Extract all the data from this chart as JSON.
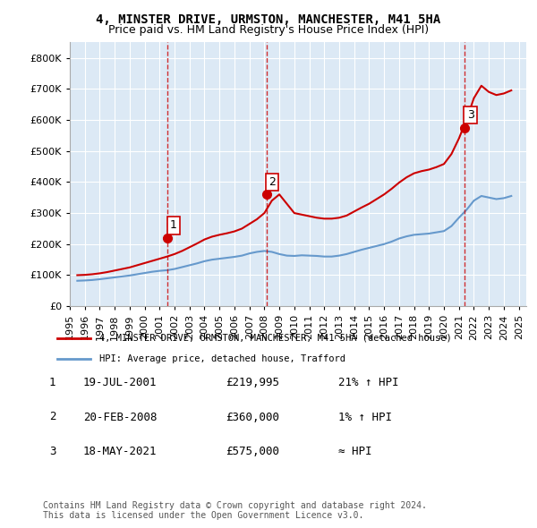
{
  "title_line1": "4, MINSTER DRIVE, URMSTON, MANCHESTER, M41 5HA",
  "title_line2": "Price paid vs. HM Land Registry's House Price Index (HPI)",
  "ylabel": "",
  "background_color": "#ffffff",
  "plot_bg_color": "#dce9f5",
  "grid_color": "#ffffff",
  "sale_color": "#cc0000",
  "hpi_color": "#6699cc",
  "vline_color": "#cc0000",
  "marker_color": "#cc0000",
  "ylim": [
    0,
    850000
  ],
  "yticks": [
    0,
    100000,
    200000,
    300000,
    400000,
    500000,
    600000,
    700000,
    800000
  ],
  "ytick_labels": [
    "£0",
    "£100K",
    "£200K",
    "£300K",
    "£400K",
    "£500K",
    "£600K",
    "£700K",
    "£800K"
  ],
  "sales": [
    {
      "year": 2001.54,
      "price": 219995,
      "label": "1"
    },
    {
      "year": 2008.13,
      "price": 360000,
      "label": "2"
    },
    {
      "year": 2021.38,
      "price": 575000,
      "label": "3"
    }
  ],
  "legend_sale_label": "4, MINSTER DRIVE, URMSTON, MANCHESTER, M41 5HA (detached house)",
  "legend_hpi_label": "HPI: Average price, detached house, Trafford",
  "table_entries": [
    {
      "num": "1",
      "date": "19-JUL-2001",
      "price": "£219,995",
      "change": "21% ↑ HPI"
    },
    {
      "num": "2",
      "date": "20-FEB-2008",
      "price": "£360,000",
      "change": "1% ↑ HPI"
    },
    {
      "num": "3",
      "date": "18-MAY-2021",
      "price": "£575,000",
      "change": "≈ HPI"
    }
  ],
  "footnote": "Contains HM Land Registry data © Crown copyright and database right 2024.\nThis data is licensed under the Open Government Licence v3.0.",
  "hpi_data_x": [
    1995.5,
    1996.0,
    1996.5,
    1997.0,
    1997.5,
    1998.0,
    1998.5,
    1999.0,
    1999.5,
    2000.0,
    2000.5,
    2001.0,
    2001.5,
    2002.0,
    2002.5,
    2003.0,
    2003.5,
    2004.0,
    2004.5,
    2005.0,
    2005.5,
    2006.0,
    2006.5,
    2007.0,
    2007.5,
    2008.0,
    2008.5,
    2009.0,
    2009.5,
    2010.0,
    2010.5,
    2011.0,
    2011.5,
    2012.0,
    2012.5,
    2013.0,
    2013.5,
    2014.0,
    2014.5,
    2015.0,
    2015.5,
    2016.0,
    2016.5,
    2017.0,
    2017.5,
    2018.0,
    2018.5,
    2019.0,
    2019.5,
    2020.0,
    2020.5,
    2021.0,
    2021.5,
    2022.0,
    2022.5,
    2023.0,
    2023.5,
    2024.0,
    2024.5
  ],
  "hpi_data_y": [
    82000,
    83000,
    84500,
    87000,
    90000,
    93000,
    96000,
    99000,
    103000,
    107000,
    111000,
    114000,
    116000,
    120000,
    126000,
    132000,
    138000,
    145000,
    150000,
    153000,
    156000,
    159000,
    163000,
    170000,
    175000,
    178000,
    175000,
    168000,
    163000,
    162000,
    164000,
    163000,
    162000,
    160000,
    160000,
    163000,
    168000,
    175000,
    182000,
    188000,
    194000,
    200000,
    208000,
    218000,
    225000,
    230000,
    232000,
    234000,
    238000,
    242000,
    258000,
    285000,
    310000,
    340000,
    355000,
    350000,
    345000,
    348000,
    355000
  ],
  "sale_line_x": [
    1995.5,
    1996.0,
    1996.5,
    1997.0,
    1997.5,
    1998.0,
    1998.5,
    1999.0,
    1999.5,
    2000.0,
    2000.5,
    2001.0,
    2001.5,
    2002.0,
    2002.5,
    2003.0,
    2003.5,
    2004.0,
    2004.5,
    2005.0,
    2005.5,
    2006.0,
    2006.5,
    2007.0,
    2007.5,
    2008.0,
    2008.5,
    2009.0,
    2009.5,
    2010.0,
    2010.5,
    2011.0,
    2011.5,
    2012.0,
    2012.5,
    2013.0,
    2013.5,
    2014.0,
    2014.5,
    2015.0,
    2015.5,
    2016.0,
    2016.5,
    2017.0,
    2017.5,
    2018.0,
    2018.5,
    2019.0,
    2019.5,
    2020.0,
    2020.5,
    2021.0,
    2021.5,
    2022.0,
    2022.5,
    2023.0,
    2023.5,
    2024.0,
    2024.5
  ],
  "sale_line_y": [
    100000,
    101000,
    103000,
    106000,
    110000,
    115000,
    120000,
    125000,
    132000,
    139000,
    146000,
    153000,
    160000,
    168000,
    178000,
    190000,
    202000,
    215000,
    224000,
    230000,
    235000,
    241000,
    250000,
    265000,
    280000,
    300000,
    340000,
    360000,
    330000,
    300000,
    295000,
    290000,
    285000,
    282000,
    282000,
    285000,
    292000,
    305000,
    318000,
    330000,
    345000,
    360000,
    378000,
    398000,
    415000,
    428000,
    435000,
    440000,
    448000,
    458000,
    490000,
    540000,
    600000,
    670000,
    710000,
    690000,
    680000,
    685000,
    695000
  ],
  "xlim": [
    1995.0,
    2025.5
  ],
  "xticks": [
    1995,
    1996,
    1997,
    1998,
    1999,
    2000,
    2001,
    2002,
    2003,
    2004,
    2005,
    2006,
    2007,
    2008,
    2009,
    2010,
    2011,
    2012,
    2013,
    2014,
    2015,
    2016,
    2017,
    2018,
    2019,
    2020,
    2021,
    2022,
    2023,
    2024,
    2025
  ]
}
